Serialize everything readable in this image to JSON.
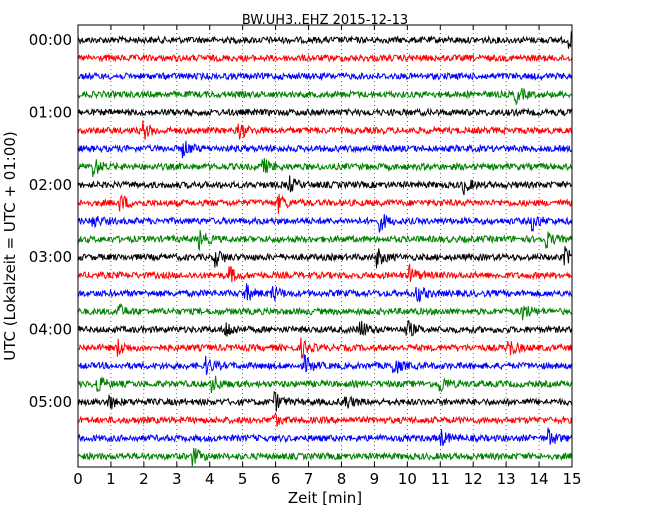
{
  "chart_data": {
    "type": "line",
    "title": "BW.UH3..EHZ 2015-12-13",
    "xlabel": "Zeit  [min]",
    "ylabel": "UTC (Lokalzeit = UTC + 01:00)",
    "xlim": [
      0,
      15
    ],
    "x_ticks": [
      "0",
      "1",
      "2",
      "3",
      "4",
      "5",
      "6",
      "7",
      "8",
      "9",
      "10",
      "11",
      "12",
      "13",
      "14",
      "15"
    ],
    "y_tick_labels": [
      "00:00",
      "01:00",
      "02:00",
      "03:00",
      "04:00",
      "05:00"
    ],
    "trace_interval_min": 15,
    "trace_count": 24,
    "trace_colors": [
      "#000000",
      "#ff0000",
      "#0000ff",
      "#008000"
    ],
    "grid": "dotted vertical lines at each minute",
    "traces": [
      {
        "start": "00:00",
        "color": "#000000",
        "events_min": [
          14.9
        ]
      },
      {
        "start": "00:15",
        "color": "#ff0000",
        "events_min": []
      },
      {
        "start": "00:30",
        "color": "#0000ff",
        "events_min": []
      },
      {
        "start": "00:45",
        "color": "#008000",
        "events_min": [
          13.3
        ]
      },
      {
        "start": "01:00",
        "color": "#000000",
        "events_min": []
      },
      {
        "start": "01:15",
        "color": "#ff0000",
        "events_min": [
          2.0,
          4.9
        ]
      },
      {
        "start": "01:30",
        "color": "#0000ff",
        "events_min": [
          3.2
        ]
      },
      {
        "start": "01:45",
        "color": "#008000",
        "events_min": [
          0.5,
          5.6
        ]
      },
      {
        "start": "02:00",
        "color": "#000000",
        "events_min": [
          6.4,
          11.7
        ]
      },
      {
        "start": "02:15",
        "color": "#ff0000",
        "events_min": [
          1.3,
          6.1
        ]
      },
      {
        "start": "02:30",
        "color": "#0000ff",
        "events_min": [
          0.4,
          9.2,
          13.8
        ]
      },
      {
        "start": "02:45",
        "color": "#008000",
        "events_min": [
          3.7,
          14.2
        ]
      },
      {
        "start": "03:00",
        "color": "#000000",
        "events_min": [
          4.2,
          9.1,
          14.8
        ]
      },
      {
        "start": "03:15",
        "color": "#ff0000",
        "events_min": [
          4.6,
          10.1
        ]
      },
      {
        "start": "03:30",
        "color": "#0000ff",
        "events_min": [
          5.1,
          5.9,
          10.3
        ]
      },
      {
        "start": "03:45",
        "color": "#008000",
        "events_min": [
          1.2,
          13.5
        ]
      },
      {
        "start": "04:00",
        "color": "#000000",
        "events_min": [
          4.5,
          8.6,
          10.0
        ]
      },
      {
        "start": "04:15",
        "color": "#ff0000",
        "events_min": [
          1.2,
          6.8,
          13.1
        ]
      },
      {
        "start": "04:30",
        "color": "#0000ff",
        "events_min": [
          3.9,
          6.9,
          9.6
        ]
      },
      {
        "start": "04:45",
        "color": "#008000",
        "events_min": [
          0.6,
          4.1,
          11.0
        ]
      },
      {
        "start": "05:00",
        "color": "#000000",
        "events_min": [
          0.9,
          6.0,
          8.1
        ]
      },
      {
        "start": "05:15",
        "color": "#ff0000",
        "events_min": [
          5.9
        ]
      },
      {
        "start": "05:30",
        "color": "#0000ff",
        "events_min": [
          11.0,
          14.3
        ]
      },
      {
        "start": "05:45",
        "color": "#008000",
        "events_min": [
          3.5
        ]
      }
    ]
  }
}
